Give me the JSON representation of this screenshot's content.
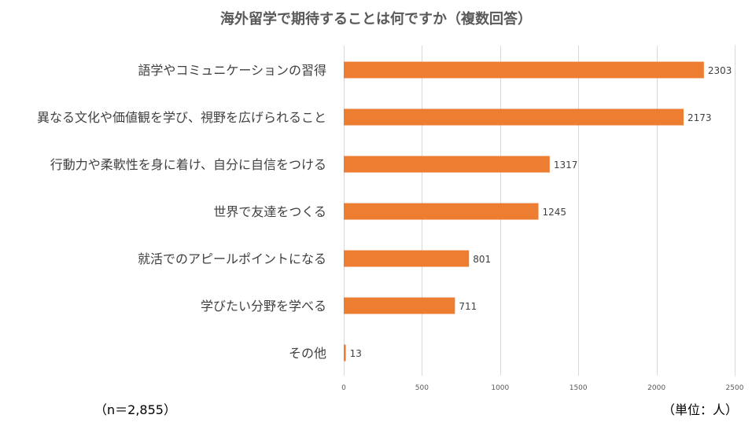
{
  "chart_data": {
    "type": "bar",
    "orientation": "horizontal",
    "title": "海外留学で期待することは何ですか（複数回答）",
    "categories": [
      "語学やコミュニケーションの習得",
      "異なる文化や価値観を学び、視野を広げられること",
      "行動力や柔軟性を身に着け、自分に自信をつける",
      "世界で友達をつくる",
      "就活でのアピールポイントになる",
      "学びたい分野を学べる",
      "その他"
    ],
    "values": [
      2303,
      2173,
      1317,
      1245,
      801,
      711,
      13
    ],
    "xlim": [
      0,
      2500
    ],
    "xticks": [
      0,
      500,
      1000,
      1500,
      2000,
      2500
    ],
    "grid": true,
    "legend": "none",
    "bar_color": "#ED7D31",
    "sample_note": "（n＝2,855）",
    "unit_note": "（単位：人）"
  }
}
